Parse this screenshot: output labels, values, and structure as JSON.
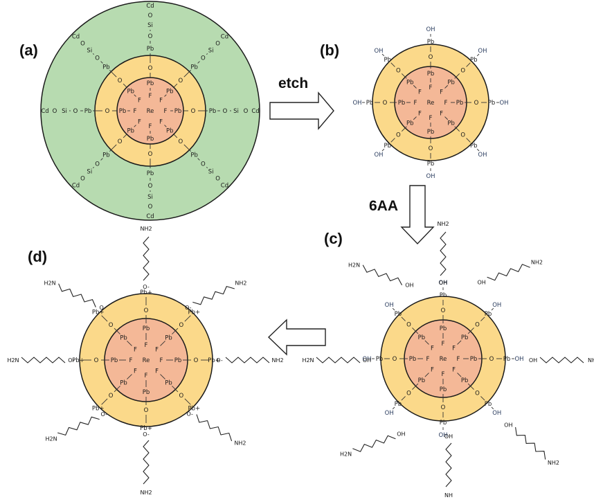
{
  "panels": {
    "a": {
      "label": "(a)"
    },
    "b": {
      "label": "(b)"
    },
    "c": {
      "label": "(c)"
    },
    "d": {
      "label": "(d)"
    }
  },
  "arrows": {
    "etch": "etch",
    "six_aa": "6AA"
  },
  "atoms": {
    "center": "Re",
    "fluorine": "F",
    "lead": "Pb",
    "oxygen": "O",
    "silicon": "Si",
    "cadmium": "Cd",
    "hydroxyl": "OH",
    "hydroxyl_left": "HO",
    "hydroxyl_alt": "H O",
    "lead_cation": "Pb+",
    "oxide_anion": "O-"
  },
  "ligand": {
    "amine": "NH2",
    "amine_flipped": "H2N",
    "acid": "OH",
    "carbonyl": "O",
    "carboxylate": "O-"
  },
  "colors": {
    "core": "#f4b897",
    "lead_shell": "#fbd98a",
    "cd_shell": "#b7dbb0",
    "outline": "#1a1a1a"
  }
}
